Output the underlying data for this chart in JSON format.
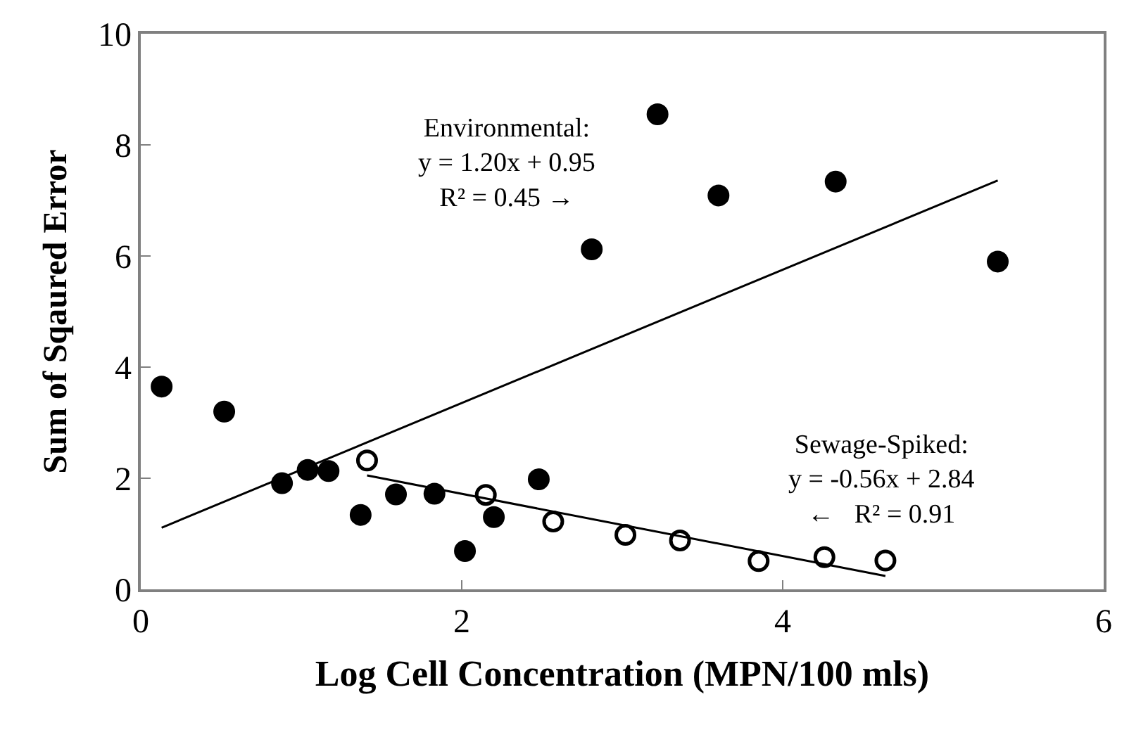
{
  "chart_data": {
    "type": "scatter",
    "xlabel": "Log Cell Concentration (MPN/100 mls)",
    "ylabel": "Sum of Sqaured Error",
    "xlim": [
      0,
      6
    ],
    "xticks": [
      0,
      2,
      4,
      6
    ],
    "ylim": [
      0,
      10
    ],
    "yticks": [
      0,
      2,
      4,
      6,
      8,
      10
    ],
    "grid": false,
    "legend": false,
    "series": [
      {
        "color": "#000000",
        "marker": "circle",
        "x": [
          0.13,
          0.52,
          0.88,
          1.04,
          1.17,
          1.37,
          1.59,
          1.83,
          2.02,
          2.2,
          2.48,
          2.81,
          3.22,
          3.6,
          4.33,
          5.34
        ],
        "values": [
          3.65,
          3.2,
          1.91,
          2.15,
          2.13,
          1.34,
          1.71,
          1.72,
          0.69,
          1.3,
          1.98,
          6.12,
          8.55,
          7.09,
          7.34,
          5.9
        ]
      },
      {
        "color": "#000000",
        "marker": "circle",
        "x": [
          1.41,
          2.15,
          2.57,
          3.02,
          3.36,
          3.85,
          4.26,
          4.64
        ],
        "values": [
          2.32,
          1.7,
          1.22,
          0.98,
          0.88,
          0.51,
          0.58,
          0.52
        ]
      },
      {
        "type": "line",
        "color": "#000000",
        "marker": "none",
        "x": [
          0.13,
          5.34
        ],
        "values": [
          1.11,
          7.36
        ]
      },
      {
        "type": "line",
        "color": "#000000",
        "marker": "none",
        "x": [
          1.41,
          4.64
        ],
        "values": [
          2.05,
          0.24
        ]
      }
    ],
    "annotations": [
      "Environmental:\ny = 1.20x + 0.95\nR² = 0.45 →",
      "Sewage-Spiked:\ny = -0.56x + 2.84\n←   R² = 0.91"
    ]
  }
}
